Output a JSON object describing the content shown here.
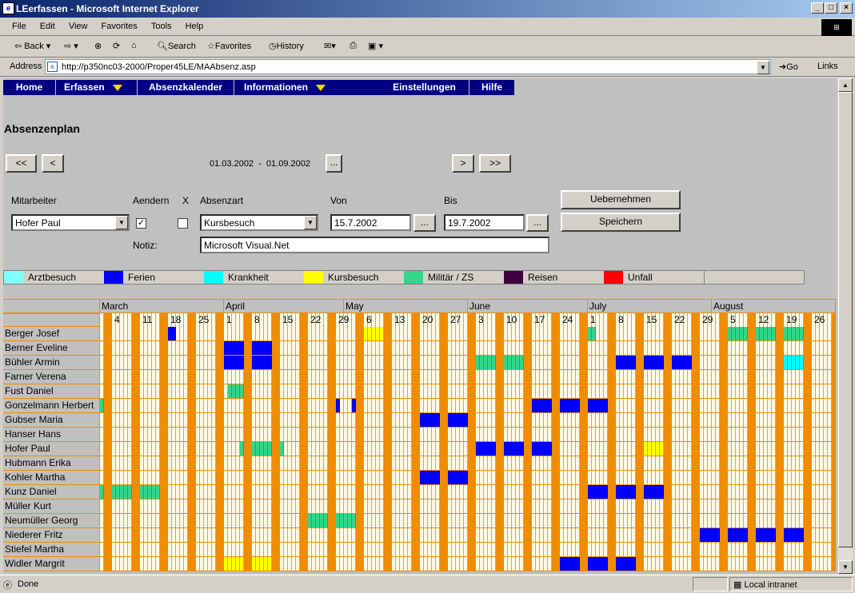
{
  "window": {
    "title": "LEerfassen - Microsoft Internet Explorer"
  },
  "menu": [
    "File",
    "Edit",
    "View",
    "Favorites",
    "Tools",
    "Help"
  ],
  "toolbar": {
    "back": "Back",
    "search": "Search",
    "favorites": "Favorites",
    "history": "History"
  },
  "address": {
    "label": "Address",
    "url": "http://p350nc03-2000/Proper45LE/MAAbsenz.asp",
    "go": "Go",
    "links": "Links"
  },
  "nav": {
    "home": "Home",
    "erfassen": "Erfassen",
    "kalender": "Absenzkalender",
    "info": "Informationen",
    "einst": "Einstellungen",
    "hilfe": "Hilfe"
  },
  "page": {
    "title": "Absenzenplan",
    "range": "01.03.2002  -  01.09.2002",
    "first": "<<",
    "prev": "<",
    "pick": "...",
    "next": ">",
    "last": ">>"
  },
  "form": {
    "mitarbeiter_label": "Mitarbeiter",
    "aendern_label": "Aendern",
    "x_label": "X",
    "absenzart_label": "Absenzart",
    "von_label": "Von",
    "bis_label": "Bis",
    "mitarbeiter": "Hofer Paul",
    "absenzart": "Kursbesuch",
    "von": "15.7.2002",
    "bis": "19.7.2002",
    "notiz_label": "Notiz:",
    "notiz": "Microsoft Visual.Net",
    "dots": "...",
    "uebernehmen": "Uebernehmen",
    "speichern": "Speichern",
    "aendern_checked": true,
    "x_checked": false
  },
  "legend": [
    {
      "label": "Arztbesuch",
      "color": "#80ffff"
    },
    {
      "label": "Ferien",
      "color": "#0000ff"
    },
    {
      "label": "Krankheit",
      "color": "#00ffff"
    },
    {
      "label": "Kursbesuch",
      "color": "#ffff00"
    },
    {
      "label": "Militär / ZS",
      "color": "#33d68a"
    },
    {
      "label": "Reisen",
      "color": "#400040"
    },
    {
      "label": "Unfall",
      "color": "#ff0000"
    }
  ],
  "calendar": {
    "months": [
      {
        "label": "March"
      },
      {
        "label": "April"
      },
      {
        "label": "May"
      },
      {
        "label": "June"
      },
      {
        "label": "July"
      },
      {
        "label": "August"
      }
    ],
    "weeks": [
      "4",
      "11",
      "18",
      "25",
      "1",
      "8",
      "15",
      "22",
      "29",
      "6",
      "13",
      "20",
      "27",
      "3",
      "10",
      "17",
      "24",
      "1",
      "8",
      "15",
      "22",
      "29",
      "5",
      "12",
      "19",
      "26"
    ],
    "employees": [
      "Berger Josef",
      "Berner Eveline",
      "Bühler Armin",
      "Farner Verena",
      "Fust Daniel",
      "Gonzelmann Herbert",
      "Gubser Maria",
      "Hanser Hans",
      "Hofer Paul",
      "Hubmann Erika",
      "Kohler Martha",
      "Kunz Daniel",
      "Müller Kurt",
      "Neumüller Georg",
      "Niederer Fritz",
      "Stiefel Martha",
      "Widler Margrit"
    ],
    "absences": [
      {
        "row": 0,
        "start": "2002-03-18",
        "end": "2002-03-19",
        "type": "Ferien"
      },
      {
        "row": 0,
        "start": "2002-05-06",
        "end": "2002-05-10",
        "type": "Kursbesuch"
      },
      {
        "row": 0,
        "start": "2002-07-01",
        "end": "2002-07-02",
        "type": "Militär / ZS"
      },
      {
        "row": 0,
        "start": "2002-08-05",
        "end": "2002-08-09",
        "type": "Militär / ZS"
      },
      {
        "row": 0,
        "start": "2002-08-12",
        "end": "2002-08-16",
        "type": "Militär / ZS"
      },
      {
        "row": 0,
        "start": "2002-08-19",
        "end": "2002-08-23",
        "type": "Militär / ZS"
      },
      {
        "row": 1,
        "start": "2002-04-01",
        "end": "2002-04-05",
        "type": "Ferien"
      },
      {
        "row": 1,
        "start": "2002-04-08",
        "end": "2002-04-12",
        "type": "Ferien"
      },
      {
        "row": 2,
        "start": "2002-04-01",
        "end": "2002-04-05",
        "type": "Ferien"
      },
      {
        "row": 2,
        "start": "2002-04-08",
        "end": "2002-04-12",
        "type": "Ferien"
      },
      {
        "row": 2,
        "start": "2002-06-03",
        "end": "2002-06-07",
        "type": "Militär / ZS"
      },
      {
        "row": 2,
        "start": "2002-06-10",
        "end": "2002-06-14",
        "type": "Militär / ZS"
      },
      {
        "row": 2,
        "start": "2002-07-08",
        "end": "2002-07-12",
        "type": "Ferien"
      },
      {
        "row": 2,
        "start": "2002-07-15",
        "end": "2002-07-19",
        "type": "Ferien"
      },
      {
        "row": 2,
        "start": "2002-07-22",
        "end": "2002-07-26",
        "type": "Ferien"
      },
      {
        "row": 2,
        "start": "2002-08-19",
        "end": "2002-08-23",
        "type": "Krankheit"
      },
      {
        "row": 4,
        "start": "2002-04-02",
        "end": "2002-04-05",
        "type": "Militär / ZS"
      },
      {
        "row": 5,
        "start": "2002-03-01",
        "end": "2002-03-01",
        "type": "Militär / ZS"
      },
      {
        "row": 5,
        "start": "2002-04-29",
        "end": "2002-04-29",
        "type": "Ferien"
      },
      {
        "row": 5,
        "start": "2002-05-03",
        "end": "2002-05-03",
        "type": "Ferien"
      },
      {
        "row": 5,
        "start": "2002-06-17",
        "end": "2002-06-21",
        "type": "Ferien"
      },
      {
        "row": 5,
        "start": "2002-06-24",
        "end": "2002-06-28",
        "type": "Ferien"
      },
      {
        "row": 5,
        "start": "2002-07-01",
        "end": "2002-07-05",
        "type": "Ferien"
      },
      {
        "row": 6,
        "start": "2002-05-20",
        "end": "2002-05-24",
        "type": "Ferien"
      },
      {
        "row": 6,
        "start": "2002-05-27",
        "end": "2002-05-31",
        "type": "Ferien"
      },
      {
        "row": 8,
        "start": "2002-04-05",
        "end": "2002-04-05",
        "type": "Militär / ZS"
      },
      {
        "row": 8,
        "start": "2002-04-08",
        "end": "2002-04-12",
        "type": "Militär / ZS"
      },
      {
        "row": 8,
        "start": "2002-04-15",
        "end": "2002-04-15",
        "type": "Militär / ZS"
      },
      {
        "row": 8,
        "start": "2002-06-03",
        "end": "2002-06-07",
        "type": "Ferien"
      },
      {
        "row": 8,
        "start": "2002-06-10",
        "end": "2002-06-14",
        "type": "Ferien"
      },
      {
        "row": 8,
        "start": "2002-06-17",
        "end": "2002-06-21",
        "type": "Ferien"
      },
      {
        "row": 8,
        "start": "2002-07-15",
        "end": "2002-07-19",
        "type": "Kursbesuch"
      },
      {
        "row": 10,
        "start": "2002-05-20",
        "end": "2002-05-24",
        "type": "Ferien"
      },
      {
        "row": 10,
        "start": "2002-05-27",
        "end": "2002-05-31",
        "type": "Ferien"
      },
      {
        "row": 11,
        "start": "2002-03-01",
        "end": "2002-03-01",
        "type": "Militär / ZS"
      },
      {
        "row": 11,
        "start": "2002-03-04",
        "end": "2002-03-08",
        "type": "Militär / ZS"
      },
      {
        "row": 11,
        "start": "2002-03-11",
        "end": "2002-03-15",
        "type": "Militär / ZS"
      },
      {
        "row": 11,
        "start": "2002-07-01",
        "end": "2002-07-05",
        "type": "Ferien"
      },
      {
        "row": 11,
        "start": "2002-07-08",
        "end": "2002-07-12",
        "type": "Ferien"
      },
      {
        "row": 11,
        "start": "2002-07-15",
        "end": "2002-07-19",
        "type": "Ferien"
      },
      {
        "row": 13,
        "start": "2002-04-22",
        "end": "2002-04-26",
        "type": "Militär / ZS"
      },
      {
        "row": 13,
        "start": "2002-04-29",
        "end": "2002-05-03",
        "type": "Militär / ZS"
      },
      {
        "row": 14,
        "start": "2002-07-29",
        "end": "2002-08-02",
        "type": "Ferien"
      },
      {
        "row": 14,
        "start": "2002-08-05",
        "end": "2002-08-09",
        "type": "Ferien"
      },
      {
        "row": 14,
        "start": "2002-08-12",
        "end": "2002-08-16",
        "type": "Ferien"
      },
      {
        "row": 14,
        "start": "2002-08-19",
        "end": "2002-08-23",
        "type": "Ferien"
      },
      {
        "row": 16,
        "start": "2002-04-01",
        "end": "2002-04-05",
        "type": "Kursbesuch"
      },
      {
        "row": 16,
        "start": "2002-04-08",
        "end": "2002-04-12",
        "type": "Kursbesuch"
      },
      {
        "row": 16,
        "start": "2002-06-24",
        "end": "2002-06-28",
        "type": "Ferien"
      },
      {
        "row": 16,
        "start": "2002-07-01",
        "end": "2002-07-05",
        "type": "Ferien"
      },
      {
        "row": 16,
        "start": "2002-07-08",
        "end": "2002-07-12",
        "type": "Ferien"
      }
    ]
  },
  "status": {
    "done": "Done",
    "zone": "Local intranet"
  }
}
